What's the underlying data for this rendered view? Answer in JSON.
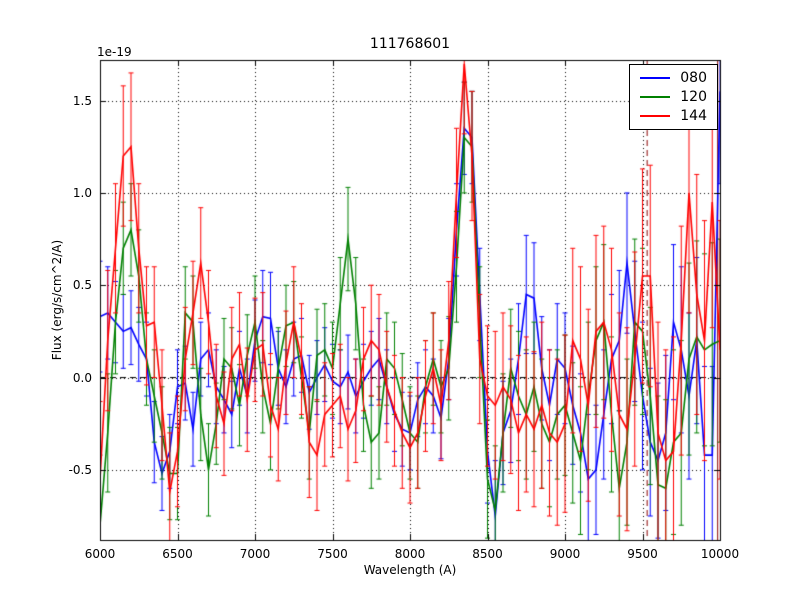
{
  "chart_data": {
    "type": "line",
    "title": "111768601",
    "xlabel": "Wavelength (A)",
    "ylabel": "Flux (erg/s/cm^2/A)",
    "offset_text": "1e-19",
    "xlim": [
      6000,
      10000
    ],
    "ylim": [
      -0.88,
      1.72
    ],
    "xticks": [
      6000,
      6500,
      7000,
      7500,
      8000,
      8500,
      9000,
      9500,
      10000
    ],
    "yticks": [
      -0.5,
      0.0,
      0.5,
      1.0,
      1.5
    ],
    "grid": true,
    "grid_style": "dotted",
    "hline": {
      "y": 0,
      "style": "dashed",
      "color": "#000000"
    },
    "vlines": [
      {
        "x": 9530,
        "style": "dashed",
        "color": "#8b0000"
      },
      {
        "x": 9985,
        "style": "solid",
        "color": "#8b0000"
      }
    ],
    "legend": {
      "position": "upper right",
      "entries": [
        {
          "label": "080",
          "color": "#0000ff"
        },
        {
          "label": "120",
          "color": "#008000"
        },
        {
          "label": "144",
          "color": "#ff0000"
        }
      ]
    },
    "x": [
      6000,
      6050,
      6100,
      6150,
      6200,
      6250,
      6300,
      6350,
      6400,
      6450,
      6500,
      6550,
      6600,
      6650,
      6700,
      6750,
      6800,
      6850,
      6900,
      6950,
      7000,
      7050,
      7100,
      7150,
      7200,
      7250,
      7300,
      7350,
      7400,
      7450,
      7500,
      7550,
      7600,
      7650,
      7700,
      7750,
      7800,
      7850,
      7900,
      7950,
      8000,
      8050,
      8100,
      8150,
      8200,
      8250,
      8300,
      8350,
      8400,
      8450,
      8500,
      8550,
      8600,
      8650,
      8700,
      8750,
      8800,
      8850,
      8900,
      8950,
      9000,
      9050,
      9100,
      9150,
      9200,
      9250,
      9300,
      9350,
      9400,
      9450,
      9500,
      9550,
      9600,
      9650,
      9700,
      9750,
      9800,
      9850,
      9900,
      9950,
      10000
    ],
    "series": [
      {
        "name": "080",
        "color": "#0000ff",
        "y": [
          0.33,
          0.35,
          0.3,
          0.25,
          0.27,
          0.18,
          0.1,
          -0.35,
          -0.52,
          -0.4,
          -0.05,
          -0.03,
          -0.28,
          0.1,
          0.15,
          -0.05,
          -0.12,
          -0.2,
          0.05,
          -0.1,
          0.2,
          0.33,
          0.32,
          0.05,
          -0.05,
          0.1,
          0.12,
          -0.08,
          0.0,
          0.07,
          -0.02,
          -0.05,
          0.03,
          -0.1,
          -0.02,
          0.05,
          0.1,
          -0.05,
          -0.2,
          -0.28,
          -0.3,
          -0.12,
          -0.05,
          -0.1,
          -0.22,
          0.1,
          0.8,
          1.35,
          1.3,
          0.45,
          -0.4,
          -0.75,
          -0.3,
          -0.18,
          0.1,
          0.45,
          0.43,
          0.05,
          -0.15,
          0.1,
          0.05,
          -0.15,
          -0.3,
          -0.55,
          -0.5,
          -0.2,
          0.1,
          0.2,
          0.62,
          0.25,
          -0.1,
          -0.35,
          -0.45,
          -0.3,
          0.3,
          0.15,
          -0.1,
          0.2,
          -0.42,
          -0.42,
          1.55
        ],
        "yerr": [
          0.3,
          0.25,
          0.22,
          0.2,
          0.2,
          0.2,
          0.2,
          0.22,
          0.2,
          0.2,
          0.2,
          0.2,
          0.2,
          0.2,
          0.2,
          0.2,
          0.18,
          0.18,
          0.2,
          0.2,
          0.22,
          0.25,
          0.25,
          0.2,
          0.2,
          0.2,
          0.2,
          0.2,
          0.2,
          0.2,
          0.2,
          0.2,
          0.2,
          0.2,
          0.2,
          0.2,
          0.22,
          0.2,
          0.2,
          0.2,
          0.2,
          0.2,
          0.2,
          0.2,
          0.22,
          0.22,
          0.25,
          0.25,
          0.25,
          0.25,
          0.28,
          0.3,
          0.28,
          0.28,
          0.3,
          0.32,
          0.3,
          0.28,
          0.3,
          0.3,
          0.3,
          0.32,
          0.32,
          0.35,
          0.35,
          0.35,
          0.35,
          0.38,
          0.38,
          0.38,
          0.4,
          0.4,
          0.42,
          0.42,
          0.42,
          0.45,
          0.45,
          0.45,
          0.48,
          0.48,
          0.5
        ]
      },
      {
        "name": "120",
        "color": "#008000",
        "y": [
          -0.8,
          -0.3,
          0.3,
          0.7,
          0.8,
          0.55,
          0.1,
          -0.1,
          -0.3,
          -0.52,
          -0.52,
          0.35,
          0.3,
          -0.2,
          -0.5,
          -0.25,
          0.1,
          0.05,
          -0.15,
          0.12,
          0.3,
          -0.05,
          -0.25,
          0.05,
          0.28,
          0.3,
          0.0,
          -0.3,
          0.12,
          0.15,
          0.05,
          0.4,
          0.75,
          0.4,
          -0.15,
          -0.35,
          -0.3,
          0.1,
          0.05,
          -0.12,
          -0.3,
          -0.35,
          -0.05,
          0.1,
          -0.05,
          0.05,
          0.6,
          1.3,
          1.25,
          0.3,
          -0.55,
          -0.72,
          -0.3,
          0.05,
          -0.1,
          -0.2,
          -0.05,
          -0.25,
          -0.35,
          -0.2,
          -0.15,
          -0.3,
          -0.45,
          -0.1,
          0.2,
          0.3,
          -0.2,
          -0.6,
          -0.35,
          0.3,
          0.25,
          -0.1,
          -0.58,
          -0.6,
          -0.35,
          -0.3,
          0.1,
          0.22,
          0.15,
          0.18,
          0.2
        ],
        "yerr": [
          0.38,
          0.32,
          0.28,
          0.25,
          0.25,
          0.25,
          0.25,
          0.25,
          0.25,
          0.25,
          0.25,
          0.25,
          0.25,
          0.25,
          0.25,
          0.22,
          0.22,
          0.22,
          0.22,
          0.22,
          0.25,
          0.25,
          0.25,
          0.22,
          0.22,
          0.22,
          0.22,
          0.25,
          0.25,
          0.25,
          0.25,
          0.25,
          0.28,
          0.25,
          0.25,
          0.25,
          0.25,
          0.25,
          0.25,
          0.25,
          0.25,
          0.25,
          0.25,
          0.25,
          0.25,
          0.28,
          0.3,
          0.3,
          0.3,
          0.3,
          0.32,
          0.35,
          0.32,
          0.32,
          0.35,
          0.35,
          0.35,
          0.35,
          0.35,
          0.35,
          0.38,
          0.38,
          0.4,
          0.4,
          0.4,
          0.42,
          0.42,
          0.42,
          0.45,
          0.45,
          0.45,
          0.48,
          0.48,
          0.48,
          0.5,
          0.5,
          0.52,
          0.52,
          0.52,
          0.55,
          0.55
        ]
      },
      {
        "name": "144",
        "color": "#ff0000",
        "y": [
          -0.55,
          0.2,
          0.7,
          1.2,
          1.25,
          0.7,
          0.28,
          0.3,
          -0.15,
          -0.62,
          -0.4,
          0.1,
          0.35,
          0.62,
          0.3,
          -0.1,
          -0.25,
          0.1,
          0.18,
          -0.12,
          0.15,
          0.18,
          -0.15,
          -0.28,
          0.08,
          0.3,
          0.1,
          -0.35,
          -0.42,
          -0.2,
          -0.15,
          -0.1,
          -0.28,
          -0.18,
          0.1,
          0.2,
          0.15,
          -0.05,
          -0.18,
          -0.3,
          -0.38,
          -0.3,
          -0.1,
          0.05,
          -0.15,
          0.2,
          1.0,
          1.7,
          1.2,
          0.1,
          -0.1,
          -0.15,
          -0.05,
          -0.12,
          -0.3,
          -0.2,
          -0.28,
          -0.15,
          -0.3,
          -0.35,
          -0.25,
          0.2,
          0.1,
          -0.15,
          0.25,
          0.3,
          0.15,
          -0.2,
          -0.28,
          0.1,
          0.55,
          0.55,
          -0.3,
          -0.45,
          -0.4,
          0.2,
          1.0,
          0.45,
          0.2,
          0.95,
          0.15
        ],
        "yerr": [
          0.42,
          0.38,
          0.35,
          0.38,
          0.4,
          0.35,
          0.32,
          0.3,
          0.3,
          0.32,
          0.3,
          0.28,
          0.28,
          0.3,
          0.28,
          0.28,
          0.28,
          0.28,
          0.28,
          0.28,
          0.28,
          0.28,
          0.28,
          0.28,
          0.28,
          0.3,
          0.3,
          0.3,
          0.3,
          0.28,
          0.28,
          0.28,
          0.28,
          0.28,
          0.28,
          0.3,
          0.3,
          0.3,
          0.3,
          0.3,
          0.3,
          0.3,
          0.3,
          0.3,
          0.3,
          0.32,
          0.35,
          0.38,
          0.35,
          0.35,
          0.38,
          0.4,
          0.4,
          0.4,
          0.42,
          0.42,
          0.42,
          0.45,
          0.45,
          0.45,
          0.48,
          0.5,
          0.5,
          0.52,
          0.52,
          0.52,
          0.55,
          0.55,
          0.55,
          0.58,
          0.58,
          0.6,
          0.6,
          0.6,
          0.62,
          0.62,
          0.65,
          0.65,
          0.65,
          0.68,
          0.7
        ]
      }
    ]
  }
}
